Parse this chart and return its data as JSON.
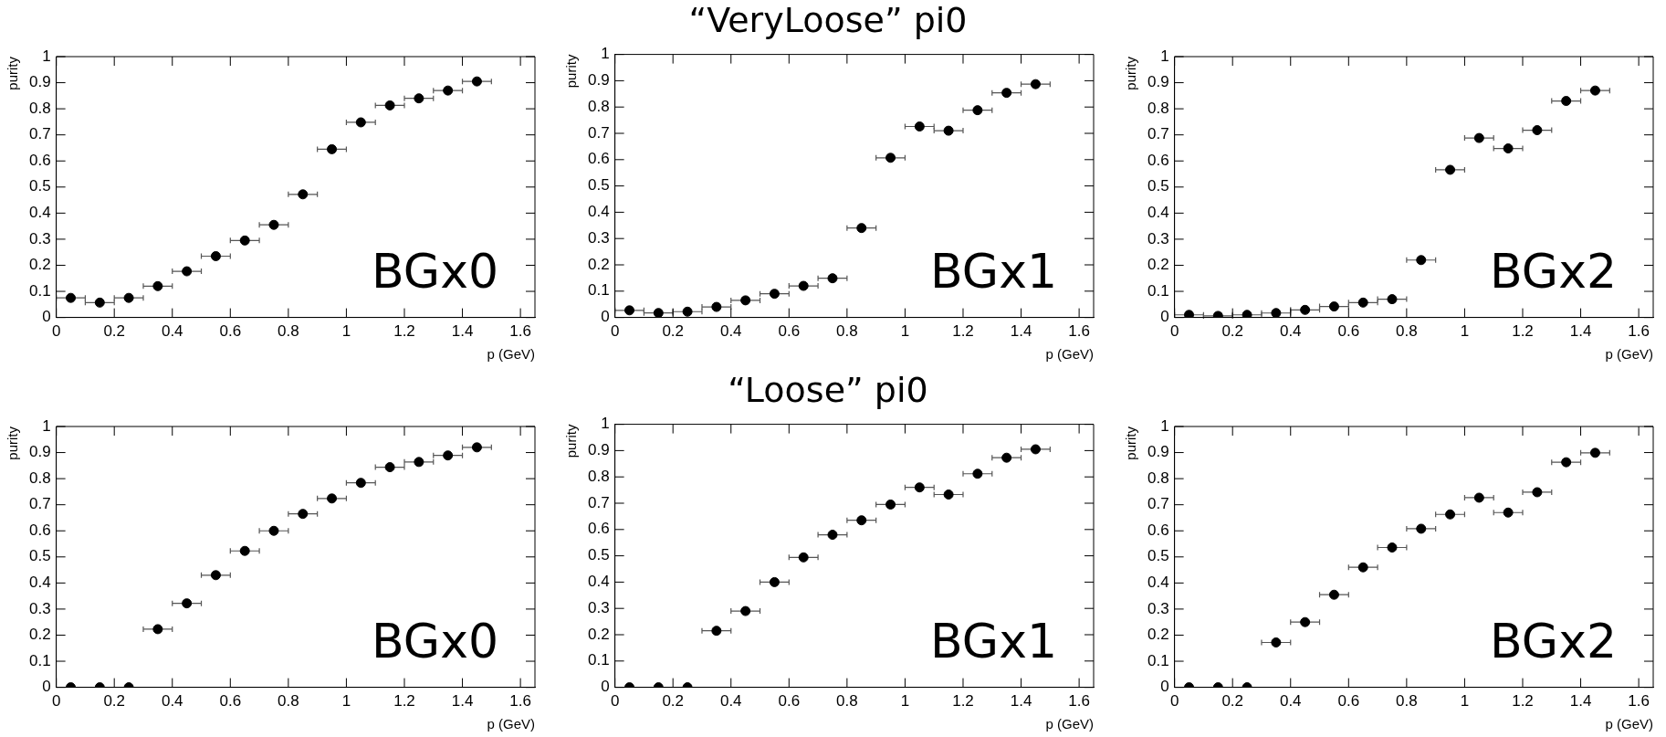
{
  "chart_data": [
    {
      "type": "scatter",
      "xlabel": "p (GeV)",
      "ylabel": "purity",
      "annotations": [
        "BGx0"
      ],
      "marker": "circle",
      "legend": false,
      "xlim": [
        0,
        1.65
      ],
      "ylim": [
        0,
        1
      ],
      "xticks": [
        0,
        0.2,
        0.4,
        0.6,
        0.8,
        1,
        1.2,
        1.4,
        1.6
      ],
      "yticks": [
        0,
        0.1,
        0.2,
        0.3,
        0.4,
        0.5,
        0.6,
        0.7,
        0.8,
        0.9,
        1
      ],
      "x": [
        0.05,
        0.15,
        0.25,
        0.35,
        0.45,
        0.55,
        0.65,
        0.75,
        0.85,
        0.95,
        1.05,
        1.15,
        1.25,
        1.35,
        1.45
      ],
      "series": [
        {
          "color": "#000000",
          "values": [
            0.075,
            0.057,
            0.075,
            0.12,
            0.177,
            0.235,
            0.295,
            0.355,
            0.472,
            0.645,
            0.748,
            0.813,
            0.84,
            0.87,
            0.905
          ],
          "xerrors": [
            0.05,
            0.05,
            0.05,
            0.05,
            0.05,
            0.05,
            0.05,
            0.05,
            0.05,
            0.05,
            0.05,
            0.05,
            0.05,
            0.05,
            0.05
          ]
        }
      ]
    },
    {
      "type": "scatter",
      "title": "“VeryLoose” pi0",
      "xlabel": "p (GeV)",
      "ylabel": "purity",
      "annotations": [
        "BGx1"
      ],
      "marker": "circle",
      "legend": false,
      "xlim": [
        0,
        1.65
      ],
      "ylim": [
        0,
        1
      ],
      "xticks": [
        0,
        0.2,
        0.4,
        0.6,
        0.8,
        1,
        1.2,
        1.4,
        1.6
      ],
      "yticks": [
        0,
        0.1,
        0.2,
        0.3,
        0.4,
        0.5,
        0.6,
        0.7,
        0.8,
        0.9,
        1
      ],
      "x": [
        0.05,
        0.15,
        0.25,
        0.35,
        0.45,
        0.55,
        0.65,
        0.75,
        0.85,
        0.95,
        1.05,
        1.15,
        1.25,
        1.35,
        1.45
      ],
      "series": [
        {
          "color": "#000000",
          "values": [
            0.027,
            0.017,
            0.022,
            0.04,
            0.065,
            0.09,
            0.12,
            0.149,
            0.34,
            0.607,
            0.726,
            0.71,
            0.788,
            0.854,
            0.887
          ],
          "xerrors": [
            0.05,
            0.05,
            0.05,
            0.05,
            0.05,
            0.05,
            0.05,
            0.05,
            0.05,
            0.05,
            0.05,
            0.05,
            0.05,
            0.05,
            0.05
          ]
        }
      ]
    },
    {
      "type": "scatter",
      "xlabel": "p (GeV)",
      "ylabel": "purity",
      "annotations": [
        "BGx2"
      ],
      "marker": "circle",
      "legend": false,
      "xlim": [
        0,
        1.65
      ],
      "ylim": [
        0,
        1
      ],
      "xticks": [
        0,
        0.2,
        0.4,
        0.6,
        0.8,
        1,
        1.2,
        1.4,
        1.6
      ],
      "yticks": [
        0,
        0.1,
        0.2,
        0.3,
        0.4,
        0.5,
        0.6,
        0.7,
        0.8,
        0.9,
        1
      ],
      "x": [
        0.05,
        0.15,
        0.25,
        0.35,
        0.45,
        0.55,
        0.65,
        0.75,
        0.85,
        0.95,
        1.05,
        1.15,
        1.25,
        1.35,
        1.45
      ],
      "series": [
        {
          "color": "#000000",
          "values": [
            0.01,
            0.006,
            0.01,
            0.017,
            0.029,
            0.042,
            0.057,
            0.07,
            0.22,
            0.566,
            0.688,
            0.648,
            0.718,
            0.83,
            0.87
          ],
          "xerrors": [
            0.05,
            0.05,
            0.05,
            0.05,
            0.05,
            0.05,
            0.05,
            0.05,
            0.05,
            0.05,
            0.05,
            0.05,
            0.05,
            0.05,
            0.05
          ]
        }
      ]
    },
    {
      "type": "scatter",
      "xlabel": "p (GeV)",
      "ylabel": "purity",
      "annotations": [
        "BGx0"
      ],
      "marker": "circle",
      "legend": false,
      "xlim": [
        0,
        1.65
      ],
      "ylim": [
        0,
        1
      ],
      "xticks": [
        0,
        0.2,
        0.4,
        0.6,
        0.8,
        1,
        1.2,
        1.4,
        1.6
      ],
      "yticks": [
        0,
        0.1,
        0.2,
        0.3,
        0.4,
        0.5,
        0.6,
        0.7,
        0.8,
        0.9,
        1
      ],
      "x": [
        0.05,
        0.15,
        0.25,
        0.35,
        0.45,
        0.55,
        0.65,
        0.75,
        0.85,
        0.95,
        1.05,
        1.15,
        1.25,
        1.35,
        1.45
      ],
      "series": [
        {
          "color": "#000000",
          "values": [
            0,
            0,
            0,
            0.223,
            0.322,
            0.43,
            0.523,
            0.6,
            0.665,
            0.724,
            0.784,
            0.844,
            0.864,
            0.889,
            0.92
          ],
          "xerrors": [
            null,
            null,
            null,
            0.05,
            0.05,
            0.05,
            0.05,
            0.05,
            0.05,
            0.05,
            0.05,
            0.05,
            0.05,
            0.05,
            0.05
          ]
        }
      ]
    },
    {
      "type": "scatter",
      "title": "“Loose” pi0",
      "xlabel": "p (GeV)",
      "ylabel": "purity",
      "annotations": [
        "BGx1"
      ],
      "marker": "circle",
      "legend": false,
      "xlim": [
        0,
        1.65
      ],
      "ylim": [
        0,
        1
      ],
      "xticks": [
        0,
        0.2,
        0.4,
        0.6,
        0.8,
        1,
        1.2,
        1.4,
        1.6
      ],
      "yticks": [
        0,
        0.1,
        0.2,
        0.3,
        0.4,
        0.5,
        0.6,
        0.7,
        0.8,
        0.9,
        1
      ],
      "x": [
        0.05,
        0.15,
        0.25,
        0.35,
        0.45,
        0.55,
        0.65,
        0.75,
        0.85,
        0.95,
        1.05,
        1.15,
        1.25,
        1.35,
        1.45
      ],
      "series": [
        {
          "color": "#000000",
          "values": [
            0,
            0,
            0,
            0.215,
            0.29,
            0.4,
            0.494,
            0.58,
            0.635,
            0.695,
            0.76,
            0.733,
            0.812,
            0.873,
            0.905
          ],
          "xerrors": [
            null,
            null,
            null,
            0.05,
            0.05,
            0.05,
            0.05,
            0.05,
            0.05,
            0.05,
            0.05,
            0.05,
            0.05,
            0.05,
            0.05
          ]
        }
      ]
    },
    {
      "type": "scatter",
      "xlabel": "p (GeV)",
      "ylabel": "purity",
      "annotations": [
        "BGx2"
      ],
      "marker": "circle",
      "legend": false,
      "xlim": [
        0,
        1.65
      ],
      "ylim": [
        0,
        1
      ],
      "xticks": [
        0,
        0.2,
        0.4,
        0.6,
        0.8,
        1,
        1.2,
        1.4,
        1.6
      ],
      "yticks": [
        0,
        0.1,
        0.2,
        0.3,
        0.4,
        0.5,
        0.6,
        0.7,
        0.8,
        0.9,
        1
      ],
      "x": [
        0.05,
        0.15,
        0.25,
        0.35,
        0.45,
        0.55,
        0.65,
        0.75,
        0.85,
        0.95,
        1.05,
        1.15,
        1.25,
        1.35,
        1.45
      ],
      "series": [
        {
          "color": "#000000",
          "values": [
            0,
            0,
            0,
            0.172,
            0.25,
            0.355,
            0.46,
            0.536,
            0.608,
            0.663,
            0.727,
            0.67,
            0.748,
            0.863,
            0.899
          ],
          "xerrors": [
            null,
            null,
            null,
            0.05,
            0.05,
            0.05,
            0.05,
            0.05,
            0.05,
            0.05,
            0.05,
            0.05,
            0.05,
            0.05,
            0.05
          ]
        }
      ]
    }
  ]
}
